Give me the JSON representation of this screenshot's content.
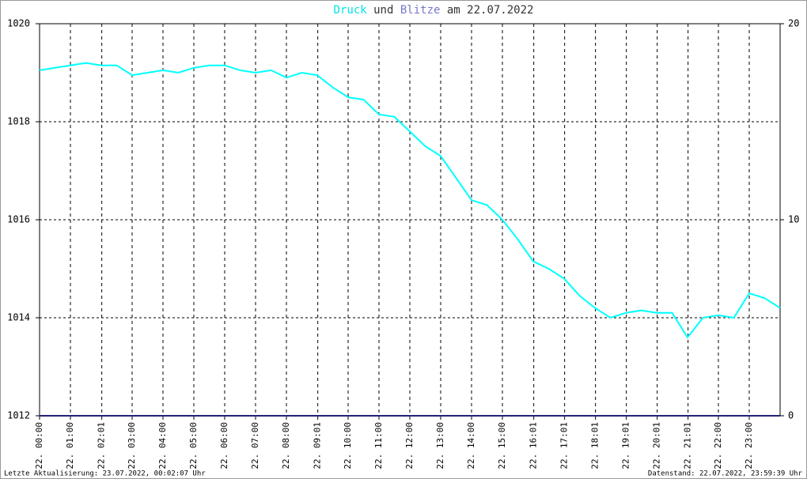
{
  "chart_data": {
    "type": "line",
    "title_parts": [
      {
        "text": "Druck",
        "color": "#00e5e5"
      },
      {
        "text": "und",
        "color": "#333333"
      },
      {
        "text": "Blitze",
        "color": "#7777cc"
      },
      {
        "text": "am 22.07.2022",
        "color": "#333333"
      }
    ],
    "footer_left": "Letzte Aktualisierung: 23.07.2022, 00:02:07 Uhr",
    "footer_right": "Datenstand: 22.07.2022, 23:59:39 Uhr",
    "x": [
      0,
      0.5,
      1,
      1.5,
      2,
      2.5,
      3,
      3.5,
      4,
      4.5,
      5,
      5.5,
      6,
      6.5,
      7,
      7.5,
      8,
      8.5,
      9,
      9.5,
      10,
      10.5,
      11,
      11.5,
      12,
      12.5,
      13,
      13.5,
      14,
      14.5,
      15,
      15.5,
      16,
      16.5,
      17,
      17.5,
      18,
      18.5,
      19,
      19.5,
      20,
      20.5,
      21,
      21.5,
      22,
      22.5,
      23,
      23.5,
      24
    ],
    "series": [
      {
        "name": "Druck",
        "color": "#00ffff",
        "values": [
          1019.05,
          1019.1,
          1019.15,
          1019.2,
          1019.15,
          1019.15,
          1018.95,
          1019.0,
          1019.05,
          1019.0,
          1019.1,
          1019.15,
          1019.15,
          1019.05,
          1019.0,
          1019.05,
          1018.9,
          1019.0,
          1018.95,
          1018.7,
          1018.5,
          1018.45,
          1018.15,
          1018.1,
          1017.8,
          1017.5,
          1017.3,
          1016.85,
          1016.4,
          1016.3,
          1016.0,
          1015.6,
          1015.15,
          1015.0,
          1014.8,
          1014.45,
          1014.2,
          1014.0,
          1014.1,
          1014.15,
          1014.1,
          1014.1,
          1013.6,
          1014.0,
          1014.05,
          1014.0,
          1014.5,
          1014.4,
          1014.2
        ]
      },
      {
        "name": "Blitze",
        "color": "#222277",
        "axis": "y2",
        "values": [
          0,
          0,
          0,
          0,
          0,
          0,
          0,
          0,
          0,
          0,
          0,
          0,
          0,
          0,
          0,
          0,
          0,
          0,
          0,
          0,
          0,
          0,
          0,
          0,
          0,
          0,
          0,
          0,
          0,
          0,
          0,
          0,
          0,
          0,
          0,
          0,
          0,
          0,
          0,
          0,
          0,
          0,
          0,
          0,
          0,
          0,
          0,
          0,
          0
        ]
      }
    ],
    "xlim": [
      0,
      24
    ],
    "xticks": [
      {
        "value": 0,
        "label": "22. 00:00"
      },
      {
        "value": 1,
        "label": "22. 01:00"
      },
      {
        "value": 2.0167,
        "label": "22. 02:01"
      },
      {
        "value": 3,
        "label": "22. 03:00"
      },
      {
        "value": 4,
        "label": "22. 04:00"
      },
      {
        "value": 5,
        "label": "22. 05:00"
      },
      {
        "value": 6,
        "label": "22. 06:00"
      },
      {
        "value": 7,
        "label": "22. 07:00"
      },
      {
        "value": 8,
        "label": "22. 08:00"
      },
      {
        "value": 9.0167,
        "label": "22. 09:01"
      },
      {
        "value": 10,
        "label": "22. 10:00"
      },
      {
        "value": 11,
        "label": "22. 11:00"
      },
      {
        "value": 12,
        "label": "22. 12:00"
      },
      {
        "value": 13,
        "label": "22. 13:00"
      },
      {
        "value": 14,
        "label": "22. 14:00"
      },
      {
        "value": 15,
        "label": "22. 15:00"
      },
      {
        "value": 16.0167,
        "label": "22. 16:01"
      },
      {
        "value": 17.0167,
        "label": "22. 17:01"
      },
      {
        "value": 18.0167,
        "label": "22. 18:01"
      },
      {
        "value": 19.0167,
        "label": "22. 19:01"
      },
      {
        "value": 20.0167,
        "label": "22. 20:01"
      },
      {
        "value": 21.0167,
        "label": "22. 21:01"
      },
      {
        "value": 22,
        "label": "22. 22:00"
      },
      {
        "value": 23,
        "label": "22. 23:00"
      }
    ],
    "ylim": [
      1012,
      1020
    ],
    "yticks": [
      1012,
      1014,
      1016,
      1018,
      1020
    ],
    "y2lim": [
      0,
      20
    ],
    "y2ticks": [
      0,
      10,
      20
    ],
    "grid": true
  }
}
